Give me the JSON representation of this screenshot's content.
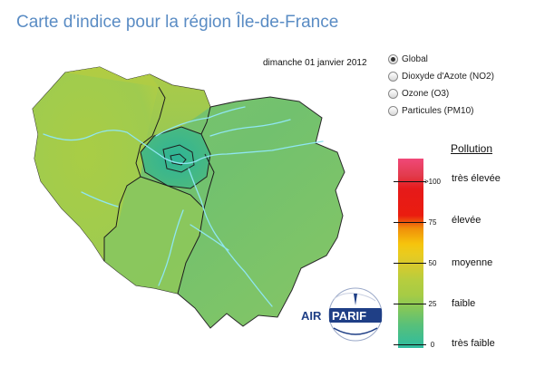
{
  "header": {
    "title": "Carte d'indice pour la région Île-de-France"
  },
  "map": {
    "date": "dimanche 01 janvier 2012"
  },
  "pollutant_options": [
    {
      "label": "Global",
      "selected": true
    },
    {
      "label": "Dioxyde d'Azote (NO2)",
      "selected": false
    },
    {
      "label": "Ozone (O3)",
      "selected": false
    },
    {
      "label": "Particules (PM10)",
      "selected": false
    }
  ],
  "legend": {
    "title": "Pollution",
    "ticks": [
      ">100",
      "75",
      "50",
      "25",
      "0"
    ],
    "categories": [
      "très élevée",
      "élevée",
      "moyenne",
      "faible",
      "très faible"
    ]
  },
  "logo": {
    "text_left": "AIR",
    "text_right": "PARIF"
  },
  "colors": {
    "title": "#5a8cc4",
    "region_west": "#a6cc4f",
    "region_east": "#7dc36c",
    "region_center": "#3bb594",
    "rivers": "#8fe6f2",
    "logo_navy": "#1f3f86"
  }
}
